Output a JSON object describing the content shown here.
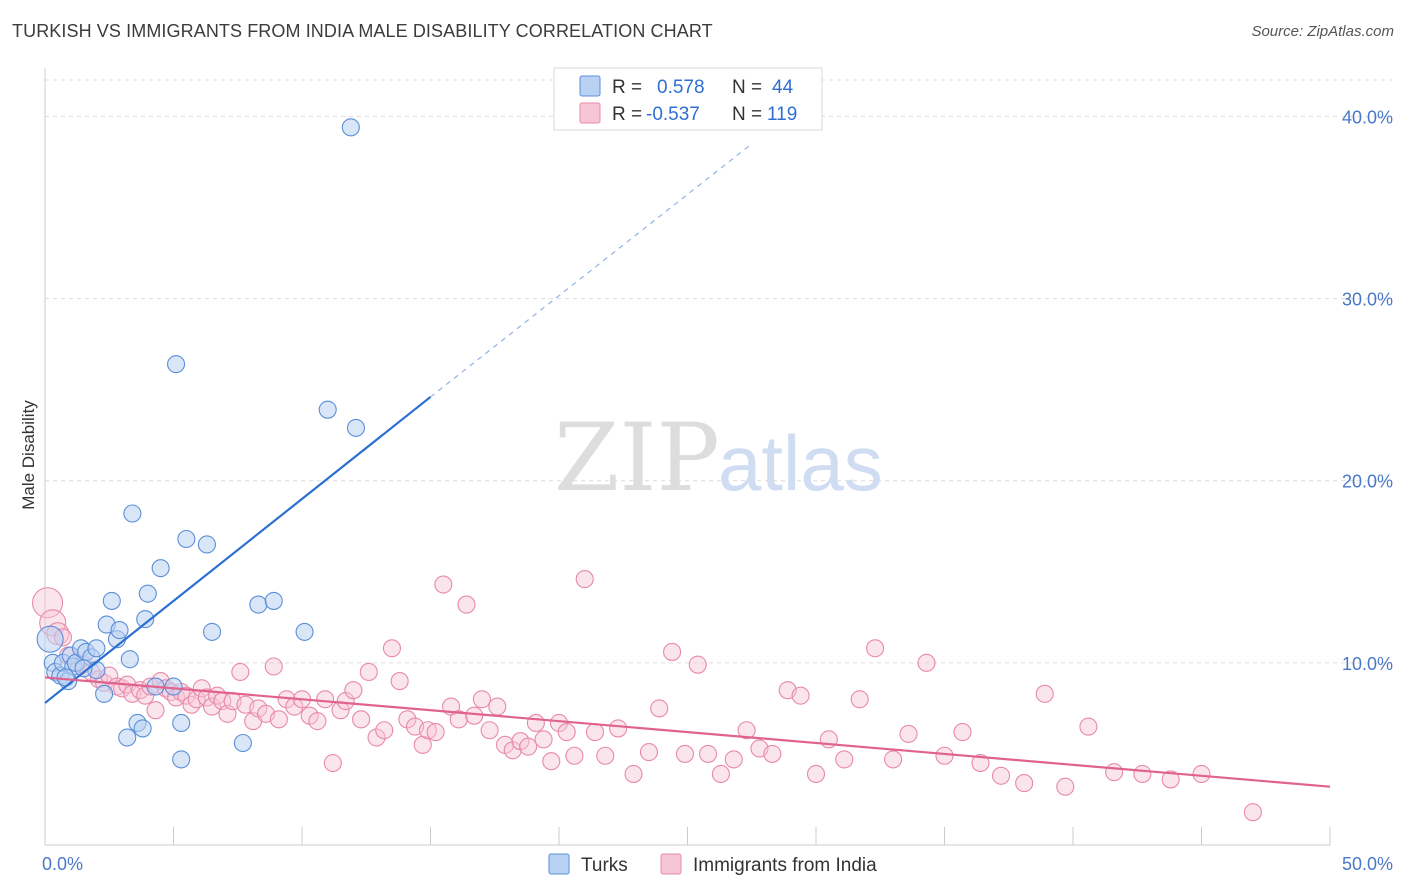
{
  "title": "TURKISH VS IMMIGRANTS FROM INDIA MALE DISABILITY CORRELATION CHART",
  "source": "Source: ZipAtlas.com",
  "watermark": {
    "zip": "ZIP",
    "atlas": "atlas"
  },
  "legend_box": {
    "rows": [
      {
        "r_label": "R =",
        "r_value": "0.578",
        "n_label": "N =",
        "n_value": "44"
      },
      {
        "r_label": "R =",
        "r_value": "-0.537",
        "n_label": "N =",
        "n_value": "119"
      }
    ]
  },
  "bottom_legend": [
    "Turks",
    "Immigrants from India"
  ],
  "colors": {
    "turks_fill": "#b9d2f3",
    "turks_stroke": "#5b8fd9",
    "turks_line": "#2a6fd1",
    "india_fill": "#f7c6d6",
    "india_stroke": "#e889a8",
    "india_line": "#e0628e",
    "grid": "#dcdcdc",
    "tick_text": "#4a78c8"
  },
  "chart_data": {
    "type": "scatter",
    "title": "TURKISH VS IMMIGRANTS FROM INDIA MALE DISABILITY CORRELATION CHART",
    "xlabel": "",
    "ylabel": "Male Disability",
    "xlim": [
      0,
      50
    ],
    "ylim": [
      0,
      42
    ],
    "x_ticks": [
      0,
      50
    ],
    "x_tick_labels": [
      "0.0%",
      "50.0%"
    ],
    "y_ticks": [
      10,
      20,
      30,
      40
    ],
    "y_tick_labels": [
      "10.0%",
      "20.0%",
      "30.0%",
      "40.0%"
    ],
    "grid": true,
    "legend_position": "top-center",
    "series": [
      {
        "name": "Turks",
        "r": 0.578,
        "n": 44,
        "trend": {
          "x": [
            0,
            15
          ],
          "y": [
            7.8,
            24.6
          ],
          "dashed_to": [
            27.5,
            38.5
          ]
        },
        "points": [
          [
            0.2,
            11.3
          ],
          [
            0.3,
            10.0
          ],
          [
            0.4,
            9.5
          ],
          [
            0.6,
            9.3
          ],
          [
            0.7,
            10.0
          ],
          [
            0.9,
            9.0
          ],
          [
            1.0,
            10.4
          ],
          [
            1.1,
            9.8
          ],
          [
            1.2,
            10.0
          ],
          [
            1.4,
            10.8
          ],
          [
            1.6,
            10.6
          ],
          [
            1.8,
            10.3
          ],
          [
            2.0,
            10.8
          ],
          [
            2.3,
            8.3
          ],
          [
            2.4,
            12.1
          ],
          [
            2.6,
            13.4
          ],
          [
            2.8,
            11.3
          ],
          [
            2.9,
            11.8
          ],
          [
            3.3,
            10.2
          ],
          [
            3.4,
            18.2
          ],
          [
            3.6,
            6.7
          ],
          [
            3.8,
            6.4
          ],
          [
            3.9,
            12.4
          ],
          [
            4.0,
            13.8
          ],
          [
            4.3,
            8.7
          ],
          [
            4.5,
            15.2
          ],
          [
            5.1,
            26.4
          ],
          [
            5.3,
            6.7
          ],
          [
            5.3,
            4.7
          ],
          [
            5.5,
            16.8
          ],
          [
            6.3,
            16.5
          ],
          [
            6.5,
            11.7
          ],
          [
            7.7,
            5.6
          ],
          [
            8.3,
            13.2
          ],
          [
            8.9,
            13.4
          ],
          [
            10.1,
            11.7
          ],
          [
            11.0,
            23.9
          ],
          [
            12.1,
            22.9
          ],
          [
            11.9,
            39.4
          ],
          [
            5.0,
            8.7
          ],
          [
            3.2,
            5.9
          ],
          [
            2.0,
            9.6
          ],
          [
            1.5,
            9.7
          ],
          [
            0.8,
            9.2
          ]
        ]
      },
      {
        "name": "Immigrants from India",
        "r": -0.537,
        "n": 119,
        "trend": {
          "x": [
            0,
            50
          ],
          "y": [
            9.2,
            3.2
          ]
        },
        "points": [
          [
            0.1,
            13.3
          ],
          [
            0.3,
            12.2
          ],
          [
            0.5,
            11.6
          ],
          [
            0.7,
            11.4
          ],
          [
            0.9,
            10.4
          ],
          [
            1.2,
            10.0
          ],
          [
            1.5,
            9.9
          ],
          [
            1.8,
            9.5
          ],
          [
            2.1,
            9.1
          ],
          [
            2.3,
            8.9
          ],
          [
            2.5,
            9.3
          ],
          [
            2.8,
            8.7
          ],
          [
            3.0,
            8.6
          ],
          [
            3.2,
            8.8
          ],
          [
            3.4,
            8.3
          ],
          [
            3.7,
            8.5
          ],
          [
            3.9,
            8.2
          ],
          [
            4.1,
            8.7
          ],
          [
            4.3,
            7.4
          ],
          [
            4.5,
            9.0
          ],
          [
            4.7,
            8.6
          ],
          [
            4.9,
            8.4
          ],
          [
            5.1,
            8.1
          ],
          [
            5.3,
            8.4
          ],
          [
            5.5,
            8.2
          ],
          [
            5.7,
            7.7
          ],
          [
            5.9,
            8.0
          ],
          [
            6.1,
            8.6
          ],
          [
            6.3,
            8.1
          ],
          [
            6.5,
            7.6
          ],
          [
            6.7,
            8.2
          ],
          [
            6.9,
            7.9
          ],
          [
            7.1,
            7.2
          ],
          [
            7.3,
            7.9
          ],
          [
            7.6,
            9.5
          ],
          [
            7.8,
            7.7
          ],
          [
            8.1,
            6.8
          ],
          [
            8.3,
            7.5
          ],
          [
            8.6,
            7.2
          ],
          [
            8.9,
            9.8
          ],
          [
            9.1,
            6.9
          ],
          [
            9.4,
            8.0
          ],
          [
            9.7,
            7.6
          ],
          [
            10.0,
            8.0
          ],
          [
            10.3,
            7.1
          ],
          [
            10.6,
            6.8
          ],
          [
            10.9,
            8.0
          ],
          [
            11.2,
            4.5
          ],
          [
            11.5,
            7.4
          ],
          [
            11.7,
            7.9
          ],
          [
            12.0,
            8.5
          ],
          [
            12.3,
            6.9
          ],
          [
            12.6,
            9.5
          ],
          [
            12.9,
            5.9
          ],
          [
            13.2,
            6.3
          ],
          [
            13.5,
            10.8
          ],
          [
            13.8,
            9.0
          ],
          [
            14.1,
            6.9
          ],
          [
            14.4,
            6.5
          ],
          [
            14.7,
            5.5
          ],
          [
            14.9,
            6.3
          ],
          [
            15.2,
            6.2
          ],
          [
            15.5,
            14.3
          ],
          [
            15.8,
            7.6
          ],
          [
            16.1,
            6.9
          ],
          [
            16.4,
            13.2
          ],
          [
            16.7,
            7.1
          ],
          [
            17.0,
            8.0
          ],
          [
            17.3,
            6.3
          ],
          [
            17.6,
            7.6
          ],
          [
            17.9,
            5.5
          ],
          [
            18.2,
            5.2
          ],
          [
            18.5,
            5.7
          ],
          [
            18.8,
            5.4
          ],
          [
            19.1,
            6.7
          ],
          [
            19.4,
            5.8
          ],
          [
            19.7,
            4.6
          ],
          [
            20.0,
            6.7
          ],
          [
            20.3,
            6.2
          ],
          [
            20.6,
            4.9
          ],
          [
            21.0,
            14.6
          ],
          [
            21.4,
            6.2
          ],
          [
            21.8,
            4.9
          ],
          [
            22.3,
            6.4
          ],
          [
            22.9,
            3.9
          ],
          [
            23.5,
            5.1
          ],
          [
            23.9,
            7.5
          ],
          [
            24.4,
            10.6
          ],
          [
            24.9,
            5.0
          ],
          [
            25.4,
            9.9
          ],
          [
            25.8,
            5.0
          ],
          [
            26.3,
            3.9
          ],
          [
            26.8,
            4.7
          ],
          [
            27.3,
            6.3
          ],
          [
            27.8,
            5.3
          ],
          [
            28.3,
            5.0
          ],
          [
            28.9,
            8.5
          ],
          [
            29.4,
            8.2
          ],
          [
            30.0,
            3.9
          ],
          [
            30.5,
            5.8
          ],
          [
            31.1,
            4.7
          ],
          [
            31.7,
            8.0
          ],
          [
            32.3,
            10.8
          ],
          [
            33.0,
            4.7
          ],
          [
            33.6,
            6.1
          ],
          [
            34.3,
            10.0
          ],
          [
            35.0,
            4.9
          ],
          [
            35.7,
            6.2
          ],
          [
            36.4,
            4.5
          ],
          [
            37.2,
            3.8
          ],
          [
            38.1,
            3.4
          ],
          [
            38.9,
            8.3
          ],
          [
            39.7,
            3.2
          ],
          [
            40.6,
            6.5
          ],
          [
            41.6,
            4.0
          ],
          [
            42.7,
            3.9
          ],
          [
            43.8,
            3.6
          ],
          [
            45.0,
            3.9
          ],
          [
            47.0,
            1.8
          ]
        ]
      }
    ]
  }
}
